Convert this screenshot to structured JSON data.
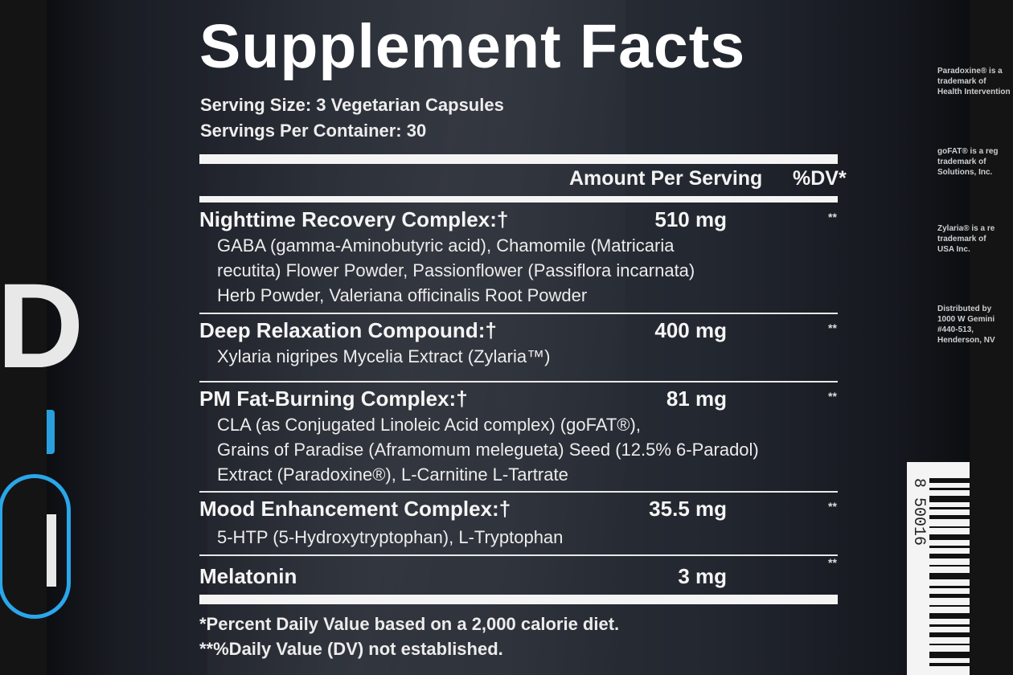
{
  "label": {
    "title": "Supplement Facts",
    "serving_size": "Serving Size: 3 Vegetarian Capsules",
    "servings_per_container": "Servings Per Container: 30",
    "header_amount": "Amount Per Serving",
    "header_dv": "%DV*",
    "rows": [
      {
        "name": "Nighttime Recovery Complex:†",
        "amount": "510 mg",
        "dv": "**",
        "desc": [
          "GABA (gamma-Aminobutyric acid), Chamomile (Matricaria",
          "recutita) Flower Powder, Passionflower (Passiflora incarnata)",
          "Herb Powder, Valeriana officinalis Root Powder"
        ]
      },
      {
        "name": "Deep Relaxation Compound:†",
        "amount": "400 mg",
        "dv": "**",
        "desc": [
          "Xylaria nigripes Mycelia Extract (Zylaria™)"
        ]
      },
      {
        "name": "PM Fat-Burning Complex:†",
        "amount": "81 mg",
        "dv": "**",
        "desc": [
          "CLA (as Conjugated Linoleic Acid complex) (goFAT®),",
          "Grains of Paradise (Aframomum melegueta) Seed (12.5% 6-Paradol)",
          "Extract (Paradoxine®), L-Carnitine L-Tartrate"
        ]
      },
      {
        "name": "Mood Enhancement Complex:†",
        "amount": "35.5 mg",
        "dv": "**",
        "desc": [
          "5-HTP (5-Hydroxytryptophan), L-Tryptophan"
        ]
      },
      {
        "name": "Melatonin",
        "amount": "3 mg",
        "dv": "**",
        "desc": []
      }
    ],
    "footnote_1": "*Percent Daily Value based on a 2,000 calorie diet.",
    "footnote_2": "**%Daily Value (DV) not established."
  },
  "side_panel": {
    "blocks": [
      [
        "Paradoxine® is a",
        "trademark of",
        "Health Intervention"
      ],
      [
        "goFAT® is a reg",
        "trademark of",
        "Solutions, Inc."
      ],
      [
        "Zylaria® is a re",
        "trademark of",
        "USA Inc."
      ],
      [
        "Distributed by",
        "1000 W Gemini",
        "#440-513,",
        "Henderson, NV"
      ]
    ],
    "barcode_digits": "8 50016"
  },
  "colors": {
    "bottle": "#22262e",
    "text": "#f2f2f2",
    "brand_accent": "#2aa6ea"
  }
}
